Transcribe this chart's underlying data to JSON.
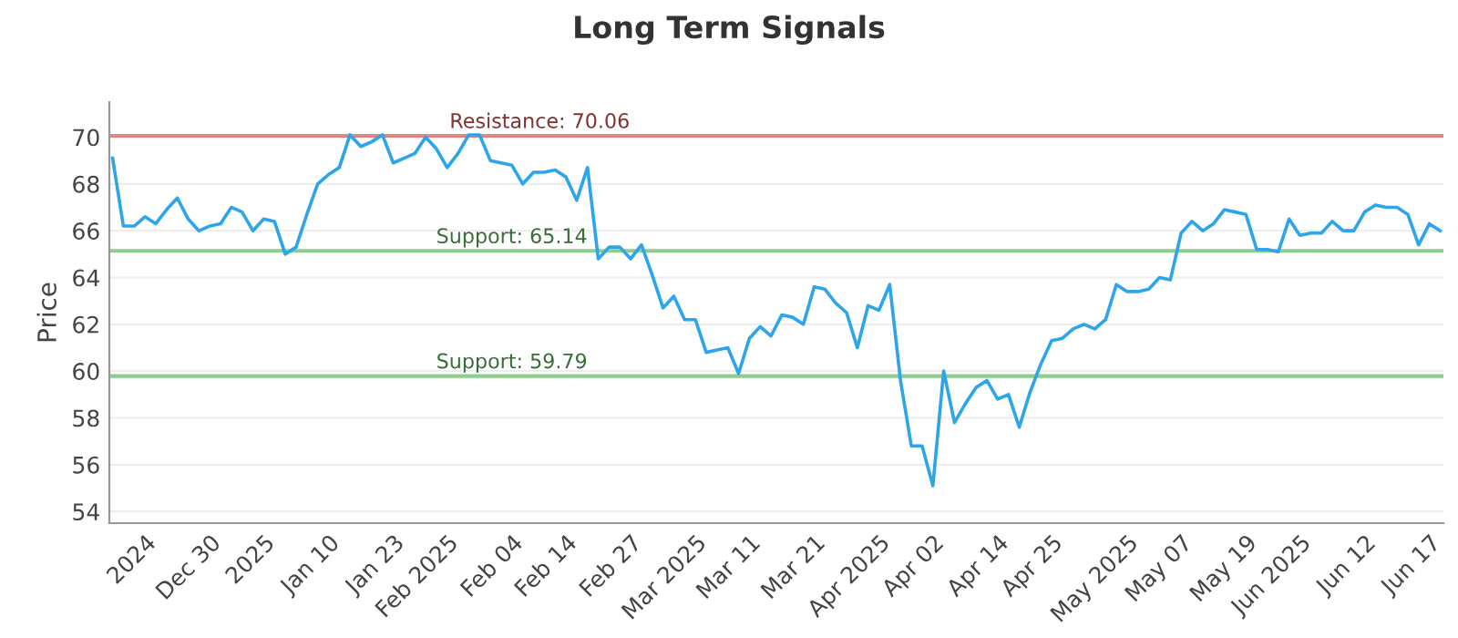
{
  "chart_data": {
    "type": "line",
    "title": "Long Term Signals",
    "ylabel": "Price",
    "categories": [
      null,
      null,
      null,
      "2024",
      null,
      null,
      null,
      null,
      null,
      "Dec 30",
      null,
      null,
      null,
      null,
      "2025",
      null,
      null,
      null,
      null,
      null,
      "Jan 10",
      null,
      null,
      null,
      null,
      null,
      "Jan 23",
      null,
      null,
      null,
      null,
      "Feb 2025",
      null,
      null,
      null,
      null,
      null,
      "Feb 04",
      null,
      null,
      null,
      null,
      "Feb 14",
      null,
      null,
      null,
      null,
      null,
      "Feb 27",
      null,
      null,
      null,
      null,
      null,
      "Mar 2025",
      null,
      null,
      null,
      null,
      "Mar 11",
      null,
      null,
      null,
      null,
      null,
      "Mar 21",
      null,
      null,
      null,
      null,
      null,
      "Apr 2025",
      null,
      null,
      null,
      null,
      "Apr 02",
      null,
      null,
      null,
      null,
      null,
      "Apr 14",
      null,
      null,
      null,
      null,
      "Apr 25",
      null,
      null,
      null,
      null,
      null,
      null,
      "May 2025",
      null,
      null,
      null,
      null,
      "May 07",
      null,
      null,
      null,
      null,
      null,
      "May 19",
      null,
      null,
      null,
      null,
      "Jun 2025",
      null,
      null,
      null,
      null,
      null,
      "Jun 12",
      null,
      null,
      null,
      null,
      null,
      "Jun 17",
      null
    ],
    "series": [
      {
        "color": "#2ea5ea",
        "values": [
          69.1,
          66.2,
          66.2,
          66.6,
          66.3,
          66.9,
          67.4,
          66.5,
          66.0,
          66.2,
          66.3,
          67.0,
          66.8,
          66.0,
          66.5,
          66.4,
          65.0,
          65.3,
          66.7,
          68.0,
          68.4,
          68.7,
          70.1,
          69.6,
          69.8,
          70.1,
          68.9,
          69.1,
          69.3,
          70.0,
          69.5,
          68.7,
          69.3,
          70.1,
          70.1,
          69.0,
          68.9,
          68.8,
          68.0,
          68.5,
          68.5,
          68.6,
          68.3,
          67.3,
          68.7,
          64.8,
          65.3,
          65.3,
          64.8,
          65.4,
          64.1,
          62.7,
          63.2,
          62.2,
          62.2,
          60.8,
          60.9,
          61.0,
          59.9,
          61.4,
          61.9,
          61.5,
          62.4,
          62.3,
          62.0,
          63.6,
          63.5,
          62.9,
          62.5,
          61.0,
          62.8,
          62.6,
          63.7,
          59.6,
          56.8,
          56.8,
          55.1,
          60.0,
          57.8,
          58.6,
          59.3,
          59.6,
          58.8,
          59.0,
          57.6,
          59.1,
          60.3,
          61.3,
          61.4,
          61.8,
          62.0,
          61.8,
          62.2,
          63.7,
          63.4,
          63.4,
          63.5,
          64.0,
          63.9,
          65.9,
          66.4,
          66.0,
          66.3,
          66.9,
          66.8,
          66.7,
          65.2,
          65.2,
          65.1,
          66.5,
          65.8,
          65.9,
          65.9,
          66.4,
          66.0,
          66.0,
          66.8,
          67.1,
          67.0,
          67.0,
          66.7,
          65.4,
          66.3,
          66.0
        ]
      }
    ],
    "ylim": [
      53.5,
      71.5
    ],
    "yticks": [
      54,
      56,
      58,
      60,
      62,
      64,
      66,
      68,
      70
    ],
    "grid": "y",
    "legend": false,
    "marker": "none",
    "line_style": "solid",
    "ref_lines": [
      {
        "axis": "y",
        "value": 70.06,
        "label": "Resistance: 70.06",
        "color": "#d9534f"
      },
      {
        "axis": "y",
        "value": 65.14,
        "label": "Support: 65.14",
        "color": "#5cb85c"
      },
      {
        "axis": "y",
        "value": 59.79,
        "label": "Support: 59.79",
        "color": "#5cb85c"
      }
    ]
  }
}
